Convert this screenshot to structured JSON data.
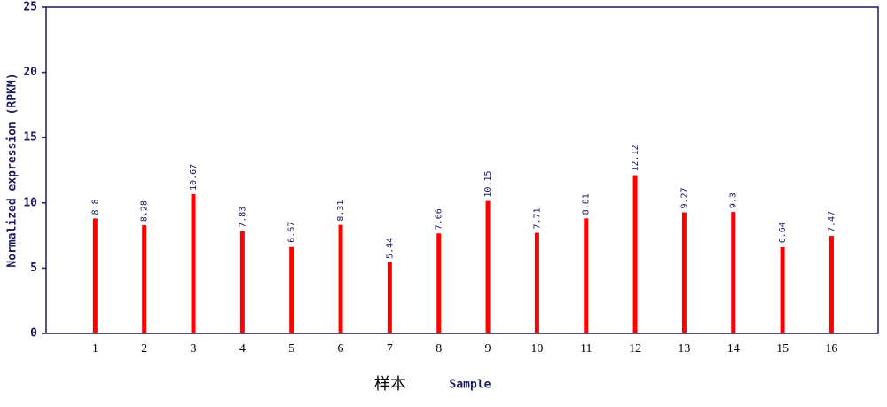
{
  "chart_data": {
    "type": "bar",
    "ylabel": "Normalized expression (RPKM)",
    "xlabel": "样本",
    "xlabel_en": "Sample",
    "categories": [
      "1",
      "2",
      "3",
      "4",
      "5",
      "6",
      "7",
      "8",
      "9",
      "10",
      "11",
      "12",
      "13",
      "14",
      "15",
      "16"
    ],
    "values": [
      8.8,
      8.28,
      10.67,
      7.83,
      6.67,
      8.31,
      5.44,
      7.66,
      10.15,
      7.71,
      8.81,
      12.12,
      9.27,
      9.3,
      6.64,
      7.47
    ],
    "color": "#ff0000",
    "ylim": [
      0,
      25
    ],
    "yticks": [
      0,
      5,
      10,
      15,
      20,
      25
    ]
  }
}
